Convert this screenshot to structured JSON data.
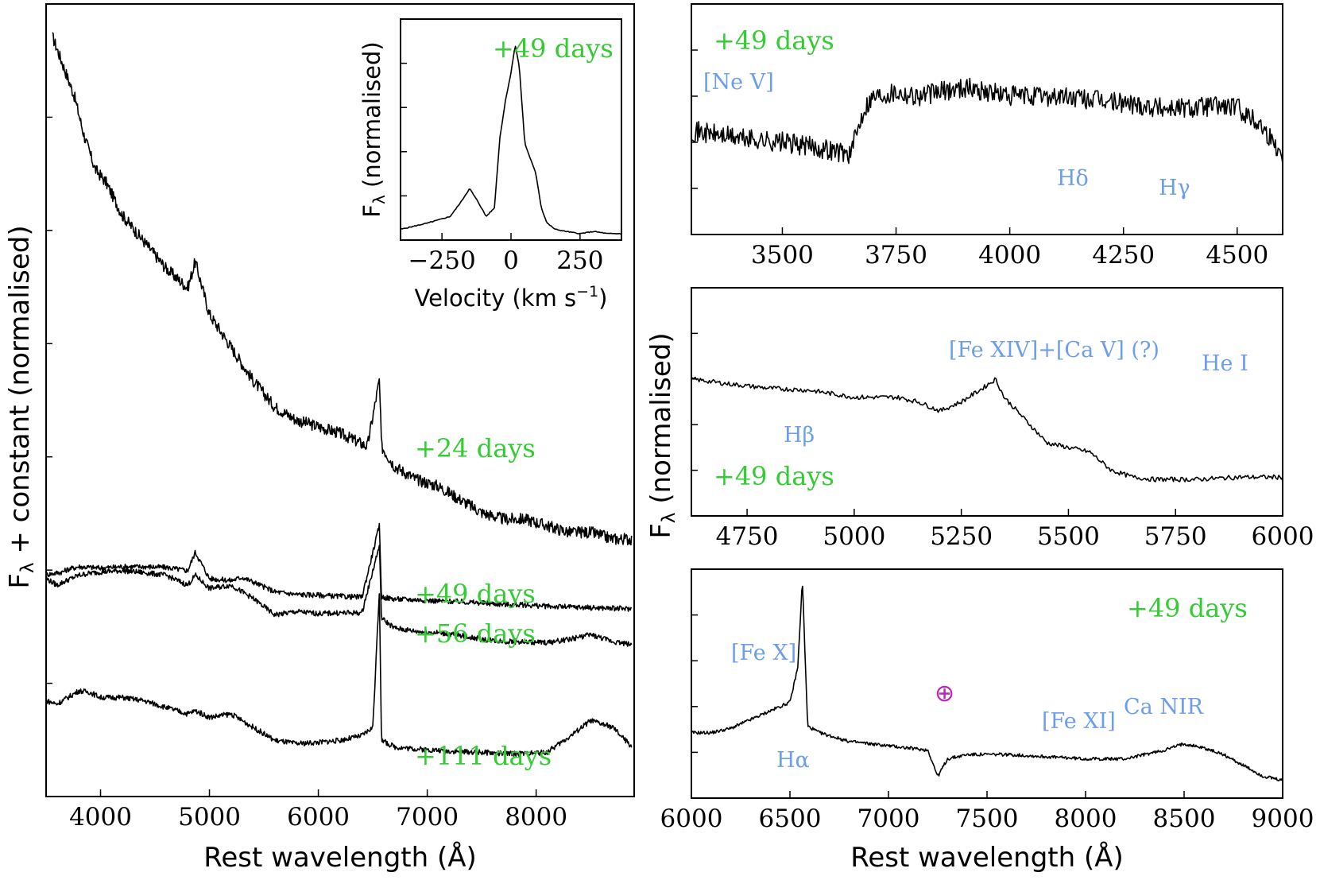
{
  "chart_data": [
    {
      "id": "main",
      "type": "line",
      "title": "",
      "xlabel": "Rest wavelength (Å)",
      "ylabel": "F_λ + constant (normalised)",
      "ylabel_parts": {
        "f": "F",
        "sub": "λ",
        "rest": " + constant (normalised)"
      },
      "xlim": [
        3500,
        8900
      ],
      "xticks": [
        "4000",
        "5000",
        "6000",
        "7000",
        "8000"
      ],
      "series": [
        {
          "name": "+24 days",
          "label": "+24 days",
          "x": [
            3560,
            3650,
            3760,
            3850,
            3950,
            4050,
            4200,
            4400,
            4600,
            4800,
            4870,
            5000,
            5200,
            5400,
            5600,
            5800,
            6000,
            6200,
            6450,
            6560,
            6580,
            6620,
            6700,
            6900,
            7100,
            7300,
            7500,
            7700,
            7900,
            8100,
            8300,
            8500,
            8700,
            8880
          ],
          "y": [
            1.0,
            0.96,
            0.91,
            0.85,
            0.8,
            0.78,
            0.73,
            0.69,
            0.65,
            0.62,
            0.66,
            0.58,
            0.53,
            0.48,
            0.44,
            0.42,
            0.41,
            0.4,
            0.38,
            0.48,
            0.38,
            0.37,
            0.35,
            0.33,
            0.32,
            0.3,
            0.28,
            0.27,
            0.27,
            0.26,
            0.25,
            0.25,
            0.24,
            0.24
          ]
        },
        {
          "name": "+49 days",
          "label": "+49 days",
          "x": [
            3500,
            3650,
            3700,
            3800,
            3900,
            4000,
            4200,
            4400,
            4600,
            4800,
            4870,
            5000,
            5200,
            5300,
            5400,
            5600,
            5800,
            6000,
            6200,
            6400,
            6560,
            6580,
            6700,
            6900,
            7100,
            7300,
            7500,
            7700,
            7900,
            8100,
            8300,
            8500,
            8700,
            8880
          ],
          "y": [
            0.186,
            0.19,
            0.194,
            0.198,
            0.197,
            0.196,
            0.198,
            0.198,
            0.197,
            0.192,
            0.22,
            0.18,
            0.177,
            0.182,
            0.175,
            0.16,
            0.156,
            0.155,
            0.153,
            0.152,
            0.26,
            0.152,
            0.149,
            0.148,
            0.146,
            0.145,
            0.143,
            0.141,
            0.14,
            0.138,
            0.137,
            0.136,
            0.135,
            0.134
          ]
        },
        {
          "name": "+56 days",
          "label": "+56 days",
          "x": [
            3500,
            3600,
            3700,
            3800,
            3900,
            4000,
            4200,
            4400,
            4600,
            4800,
            4870,
            5000,
            5200,
            5400,
            5600,
            5800,
            6000,
            6200,
            6400,
            6560,
            6580,
            6700,
            6900,
            7100,
            7300,
            7500,
            7700,
            7900,
            8100,
            8300,
            8500,
            8700,
            8880
          ],
          "y": [
            0.18,
            0.17,
            0.178,
            0.185,
            0.188,
            0.19,
            0.192,
            0.189,
            0.185,
            0.17,
            0.185,
            0.165,
            0.17,
            0.15,
            0.125,
            0.13,
            0.127,
            0.128,
            0.128,
            0.23,
            0.12,
            0.105,
            0.1,
            0.098,
            0.094,
            0.088,
            0.085,
            0.084,
            0.083,
            0.088,
            0.095,
            0.085,
            0.08
          ]
        },
        {
          "name": "+111 days",
          "label": "+111 days",
          "x": [
            3500,
            3600,
            3700,
            3800,
            3900,
            4000,
            4200,
            4400,
            4600,
            4800,
            4870,
            5000,
            5200,
            5400,
            5600,
            5800,
            6000,
            6200,
            6400,
            6500,
            6560,
            6580,
            6700,
            6900,
            7100,
            7300,
            7500,
            7700,
            7900,
            8100,
            8300,
            8500,
            8700,
            8880
          ],
          "y": [
            -0.005,
            -0.01,
            0.0,
            0.01,
            0.008,
            0.0,
            0.0,
            -0.005,
            -0.015,
            -0.025,
            -0.02,
            -0.03,
            -0.025,
            -0.045,
            -0.065,
            -0.07,
            -0.068,
            -0.065,
            -0.058,
            -0.045,
            0.16,
            -0.065,
            -0.075,
            -0.078,
            -0.08,
            -0.082,
            -0.083,
            -0.085,
            -0.085,
            -0.083,
            -0.06,
            -0.035,
            -0.045,
            -0.075
          ]
        }
      ],
      "labels": [
        "+24 days",
        "+49 days",
        "+56 days",
        "+111 days"
      ]
    },
    {
      "id": "inset",
      "type": "line",
      "xlabel": "Velocity (km s⁻¹)",
      "xlabel_parts": {
        "pre": "Velocity (km s",
        "sup": "−1",
        "post": ")"
      },
      "ylabel": "F_λ (normalised)",
      "ylabel_parts": {
        "f": "F",
        "sub": "λ",
        "rest": " (normalised)"
      },
      "xlim": [
        -400,
        400
      ],
      "xticks": [
        "−250",
        "0",
        "250"
      ],
      "label": "+49 days",
      "series": [
        {
          "name": "+49 days",
          "x": [
            -400,
            -300,
            -220,
            -180,
            -150,
            -120,
            -90,
            -60,
            -40,
            -20,
            0,
            15,
            30,
            50,
            70,
            90,
            110,
            130,
            160,
            200,
            250,
            300,
            350,
            400
          ],
          "y": [
            0.02,
            0.05,
            0.08,
            0.15,
            0.21,
            0.15,
            0.08,
            0.12,
            0.45,
            0.62,
            0.75,
            0.88,
            0.78,
            0.42,
            0.35,
            0.28,
            0.12,
            0.05,
            0.02,
            0.01,
            0.0,
            0.01,
            0.0,
            0.0
          ]
        }
      ]
    },
    {
      "id": "panel-blue",
      "type": "line",
      "xlim": [
        3300,
        4600
      ],
      "xticks": [
        "3500",
        "3750",
        "4000",
        "4250",
        "4500"
      ],
      "label": "+49 days",
      "line_ids": [
        "[Ne V]",
        "Hδ",
        "Hγ"
      ],
      "series": [
        {
          "name": "+49 days",
          "x": [
            3300,
            3400,
            3500,
            3600,
            3650,
            3680,
            3700,
            3750,
            3800,
            3850,
            3900,
            3950,
            4000,
            4100,
            4200,
            4300,
            4340,
            4400,
            4450,
            4500,
            4550,
            4600
          ],
          "y": [
            0.45,
            0.42,
            0.4,
            0.37,
            0.35,
            0.55,
            0.6,
            0.62,
            0.6,
            0.62,
            0.64,
            0.62,
            0.6,
            0.6,
            0.58,
            0.56,
            0.55,
            0.55,
            0.56,
            0.55,
            0.48,
            0.35
          ]
        }
      ]
    },
    {
      "id": "panel-green",
      "type": "line",
      "ylabel": "F_λ (normalised)",
      "ylabel_parts": {
        "f": "F",
        "sub": "λ",
        "rest": " (normalised)"
      },
      "xlim": [
        4620,
        6000
      ],
      "xticks": [
        "4750",
        "5000",
        "5250",
        "5500",
        "5750",
        "6000"
      ],
      "label": "+49 days",
      "line_ids": [
        "Hβ",
        "[Fe XIV]+[Ca V] (?)",
        "He I"
      ],
      "series": [
        {
          "name": "+49 days",
          "x": [
            4620,
            4700,
            4800,
            4900,
            5000,
            5100,
            5150,
            5200,
            5250,
            5300,
            5330,
            5350,
            5400,
            5450,
            5500,
            5550,
            5600,
            5650,
            5700,
            5800,
            5900,
            6000
          ],
          "y": [
            0.6,
            0.58,
            0.56,
            0.55,
            0.52,
            0.52,
            0.5,
            0.46,
            0.5,
            0.56,
            0.6,
            0.52,
            0.42,
            0.32,
            0.3,
            0.28,
            0.2,
            0.17,
            0.16,
            0.16,
            0.17,
            0.17
          ]
        }
      ]
    },
    {
      "id": "panel-red",
      "type": "line",
      "xlabel": "Rest wavelength (Å)",
      "xlim": [
        6000,
        9000
      ],
      "xticks": [
        "6000",
        "6500",
        "7000",
        "7500",
        "8000",
        "8500",
        "9000"
      ],
      "label": "+49 days",
      "line_ids": [
        "[Fe X]",
        "Hα",
        "[Fe XI]",
        "Ca NIR"
      ],
      "telluric_symbol": "⊕",
      "series": [
        {
          "name": "+49 days",
          "x": [
            6000,
            6100,
            6200,
            6300,
            6400,
            6500,
            6540,
            6563,
            6590,
            6650,
            6800,
            7000,
            7200,
            7250,
            7300,
            7400,
            7600,
            7800,
            8000,
            8200,
            8400,
            8500,
            8600,
            8700,
            8800,
            8900,
            9000
          ],
          "y": [
            0.3,
            0.3,
            0.32,
            0.36,
            0.4,
            0.44,
            0.6,
            1.0,
            0.33,
            0.3,
            0.26,
            0.24,
            0.22,
            0.1,
            0.18,
            0.2,
            0.2,
            0.19,
            0.18,
            0.18,
            0.22,
            0.25,
            0.23,
            0.2,
            0.15,
            0.1,
            0.08
          ]
        }
      ]
    }
  ]
}
